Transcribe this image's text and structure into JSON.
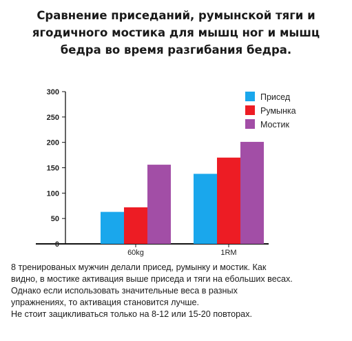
{
  "header": {
    "title_lines": [
      "Сравнение приседаний, румынской тяги и",
      "ягодичного мостика для мышц ног и мышц",
      "бедра во время разгибания бедра."
    ]
  },
  "chart_data": {
    "type": "bar",
    "title": "",
    "xlabel": "",
    "ylabel": "",
    "categories": [
      "60kg",
      "1RM"
    ],
    "series": [
      {
        "name": "Присед",
        "color": "#1aa7ec",
        "values": [
          63,
          138
        ]
      },
      {
        "name": "Румынка",
        "color": "#ed1c24",
        "values": [
          72,
          170
        ]
      },
      {
        "name": "Мостик",
        "color": "#a24ea6",
        "values": [
          156,
          201
        ]
      }
    ],
    "ylim": [
      0,
      300
    ],
    "yticks": [
      0,
      50,
      100,
      150,
      200,
      250,
      300
    ],
    "grid": false,
    "legend_position": "top-right"
  },
  "caption": {
    "lines": [
      "8 тренированых мужчин делали присед, румынку и мостик. Как",
      "видно, в мостике активация выше приседа и тяги на ебольших весах.",
      "Однако если использовать значительные веса в разных",
      "упражнениях, то активация становится лучше.",
      "Не стоит зацикливаться только на 8-12 или 15-20 повторах."
    ]
  }
}
